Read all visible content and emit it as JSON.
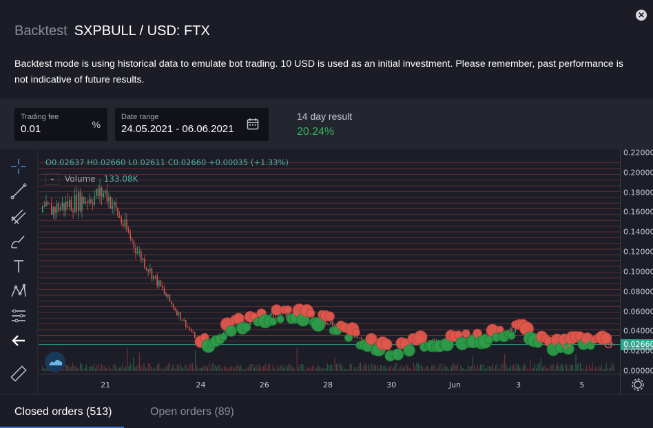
{
  "header": {
    "muted_title": "Backtest",
    "pair_title": "SXPBULL / USD: FTX",
    "description": "Backtest mode is using historical data to emulate bot trading. 10 USD is used as an initial investment. Please remember, past performance is not indicative of future results."
  },
  "controls": {
    "trading_fee": {
      "label": "Trading fee",
      "value": "0.01",
      "suffix": "%"
    },
    "date_range": {
      "label": "Date range",
      "value": "24.05.2021 - 06.06.2021"
    },
    "result": {
      "label": "14 day result",
      "value": "20.24%"
    }
  },
  "chart": {
    "ohlc": "O0.02637  H0.02660  L0.02611  C0.02660  +0.00035 (+1.33%)",
    "volume_label": "Volume",
    "volume_value": "133.08K",
    "last_price": "0.02660",
    "y_ticks": [
      "0.22000",
      "0.20000",
      "0.18000",
      "0.16000",
      "0.14000",
      "0.12000",
      "0.10000",
      "0.08000",
      "0.06000",
      "0.04000",
      "0.02000",
      "0.00000"
    ],
    "x_ticks": [
      "21",
      "24",
      "26",
      "28",
      "30",
      "Jun",
      "3",
      "5"
    ]
  },
  "chart_data": {
    "type": "line",
    "y_range": [
      0,
      0.22
    ],
    "x_range": [
      "2021-05-19",
      "2021-06-06"
    ],
    "series": [
      {
        "name": "SXPBULL / USD: FTX",
        "points": [
          {
            "x": "2021-05-19",
            "y": 0.16
          },
          {
            "x": "2021-05-20",
            "y": 0.17
          },
          {
            "x": "2021-05-21",
            "y": 0.18
          },
          {
            "x": "2021-05-22",
            "y": 0.12
          },
          {
            "x": "2021-05-23",
            "y": 0.07
          },
          {
            "x": "2021-05-24",
            "y": 0.025
          },
          {
            "x": "2021-05-25",
            "y": 0.045
          },
          {
            "x": "2021-05-26",
            "y": 0.055
          },
          {
            "x": "2021-05-27",
            "y": 0.058
          },
          {
            "x": "2021-05-28",
            "y": 0.05
          },
          {
            "x": "2021-05-29",
            "y": 0.032
          },
          {
            "x": "2021-05-30",
            "y": 0.02
          },
          {
            "x": "2021-05-31",
            "y": 0.03
          },
          {
            "x": "2021-06-01",
            "y": 0.03
          },
          {
            "x": "2021-06-02",
            "y": 0.035
          },
          {
            "x": "2021-06-03",
            "y": 0.043
          },
          {
            "x": "2021-06-04",
            "y": 0.026
          },
          {
            "x": "2021-06-05",
            "y": 0.03
          },
          {
            "x": "2021-06-06",
            "y": 0.0266
          }
        ]
      }
    ]
  },
  "tabs": {
    "closed": "Closed orders (513)",
    "open": "Open orders (89)"
  },
  "colors": {
    "buy": "#2e9c4a",
    "sell": "#e0584d",
    "accent": "#3a6fd8",
    "positive": "#34b35a"
  },
  "icons": [
    "crosshair-icon",
    "trend-line-icon",
    "pitchfork-icon",
    "brush-icon",
    "text-icon",
    "pattern-icon",
    "fib-icon",
    "back-arrow-icon",
    "ruler-icon",
    "gear-icon",
    "calendar-icon",
    "close-icon"
  ]
}
